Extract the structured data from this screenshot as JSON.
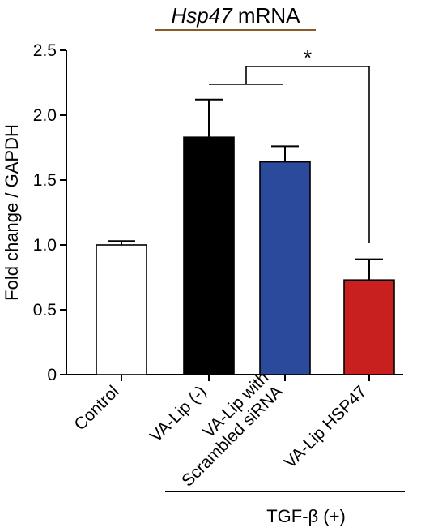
{
  "chart_data": {
    "type": "bar",
    "title": {
      "gene": "Hsp47",
      "suffix": " mRNA"
    },
    "ylabel": "Fold change / GAPDH",
    "xlabel": "",
    "ylim": [
      0,
      2.5
    ],
    "yticks": [
      "0",
      "0.5",
      "1.0",
      "1.5",
      "2.0",
      "2.5"
    ],
    "ytick_values": [
      0,
      0.5,
      1.0,
      1.5,
      2.0,
      2.5
    ],
    "categories": [
      [
        "Control"
      ],
      [
        "VA-Lip (-)"
      ],
      [
        "VA-Lip with",
        "Scrambled siRNA"
      ],
      [
        "VA-Lip HSP47"
      ]
    ],
    "values": [
      1.0,
      1.83,
      1.64,
      0.73
    ],
    "errors": [
      0.03,
      0.29,
      0.12,
      0.16
    ],
    "colors": [
      "#ffffff",
      "#000000",
      "#2b4a9c",
      "#c8201f"
    ],
    "significance_label": "*",
    "group_label": "TGF-β (+)",
    "grid": false,
    "legend": "none"
  }
}
